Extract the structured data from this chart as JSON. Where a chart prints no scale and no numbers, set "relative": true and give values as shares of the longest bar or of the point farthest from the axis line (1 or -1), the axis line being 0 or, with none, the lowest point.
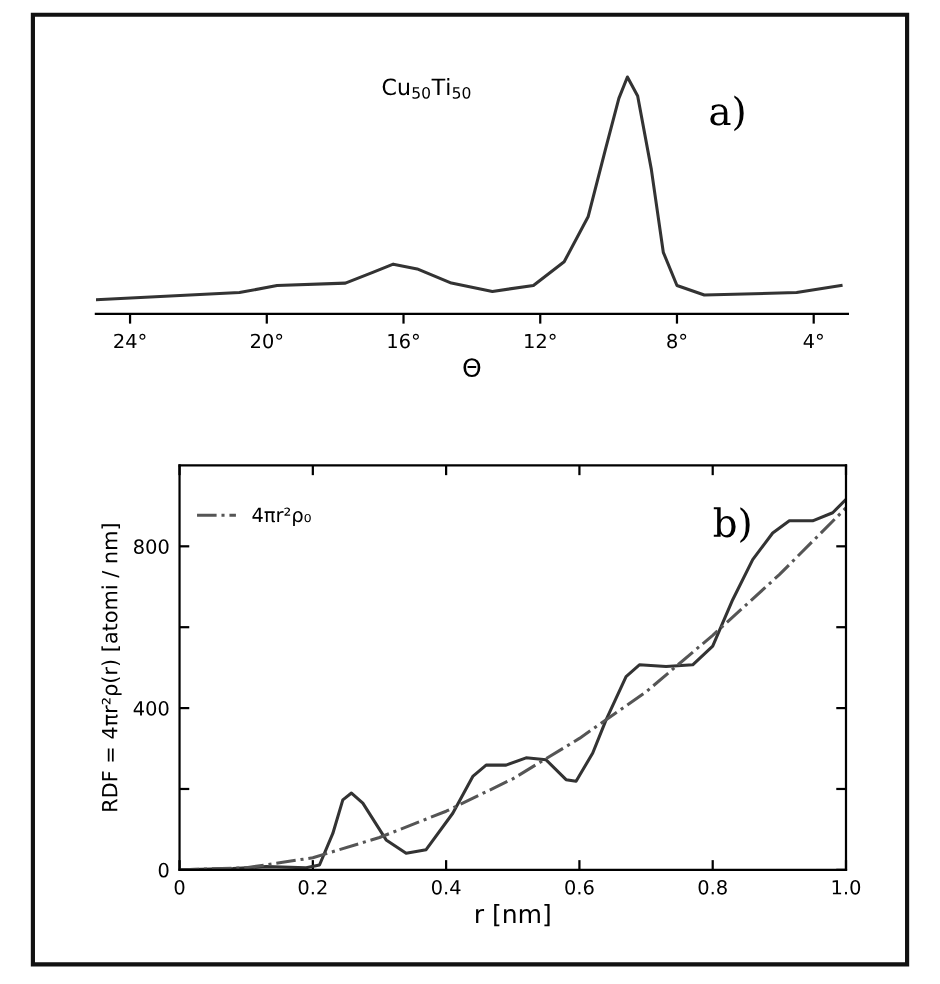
{
  "chart_data": [
    {
      "type": "line",
      "relative": true,
      "xlabel": "Θ",
      "annotations": [
        "Cu$_{50}$Ti$_{50}$",
        "a)"
      ],
      "xlim": [
        25,
        3
      ],
      "xticks": [
        {
          "value": 24,
          "label": "24°"
        },
        {
          "value": 20,
          "label": "20°"
        },
        {
          "value": 16,
          "label": "16°"
        },
        {
          "value": 12,
          "label": "12°"
        },
        {
          "value": 8,
          "label": "8°"
        },
        {
          "value": 4,
          "label": "4°"
        }
      ],
      "tick_labels": "x",
      "grid": false,
      "legend": false,
      "series": [
        {
          "color": "#333333",
          "line_style": "solid",
          "x": [
            25,
            20.8,
            19.7,
            17.7,
            16.9,
            16.3,
            15.6,
            14.6,
            13.4,
            12.2,
            11.3,
            10.6,
            10.1,
            9.7,
            9.45,
            9.15,
            8.75,
            8.4,
            8.0,
            7.2,
            4.5,
            3.2
          ],
          "values": [
            0.06,
            0.09,
            0.12,
            0.13,
            0.175,
            0.21,
            0.19,
            0.13,
            0.095,
            0.12,
            0.22,
            0.41,
            0.69,
            0.91,
            1,
            0.92,
            0.61,
            0.26,
            0.12,
            0.08,
            0.09,
            0.12
          ]
        }
      ]
    },
    {
      "type": "line",
      "xlabel": "r [nm]",
      "ylabel": "RDF = 4πr²ρ(r) [atomi / nm]",
      "annotations": [
        "b)"
      ],
      "xlim": [
        0,
        1.0
      ],
      "xticks": [
        0,
        0.2,
        0.4,
        0.6,
        0.8,
        {
          "value": 1,
          "label": "1.0"
        }
      ],
      "ylim": [
        0,
        1000
      ],
      "yticks": [
        0,
        {
          "value": 200,
          "label": null
        },
        400,
        {
          "value": 600,
          "label": null
        },
        800
      ],
      "grid": false,
      "legend": "top left",
      "series": [
        {
          "color": "#333333",
          "line_style": "solid",
          "x": [
            0,
            0.08,
            0.13,
            0.19,
            0.21,
            0.23,
            0.245,
            0.258,
            0.275,
            0.31,
            0.34,
            0.37,
            0.41,
            0.44,
            0.46,
            0.49,
            0.52,
            0.55,
            0.58,
            0.595,
            0.62,
            0.64,
            0.67,
            0.69,
            0.73,
            0.77,
            0.8,
            0.83,
            0.86,
            0.89,
            0.915,
            0.95,
            0.98,
            1.0
          ],
          "values": [
            0,
            3,
            8,
            5,
            12,
            90,
            173,
            190,
            165,
            74,
            41,
            50,
            140,
            231,
            259,
            259,
            277,
            272,
            223,
            219,
            289,
            371,
            478,
            507,
            503,
            507,
            553,
            668,
            767,
            833,
            863,
            863,
            883,
            916
          ]
        },
        {
          "name": "4πr²ρ₀",
          "color": "#555555",
          "line_style": "dashdot",
          "x": [
            0,
            0.1,
            0.2,
            0.3,
            0.4,
            0.5,
            0.6,
            0.7,
            0.8,
            0.9,
            1.0
          ],
          "values": [
            0,
            5,
            30,
            80,
            145,
            225,
            325,
            440,
            580,
            730,
            895
          ]
        }
      ]
    }
  ]
}
